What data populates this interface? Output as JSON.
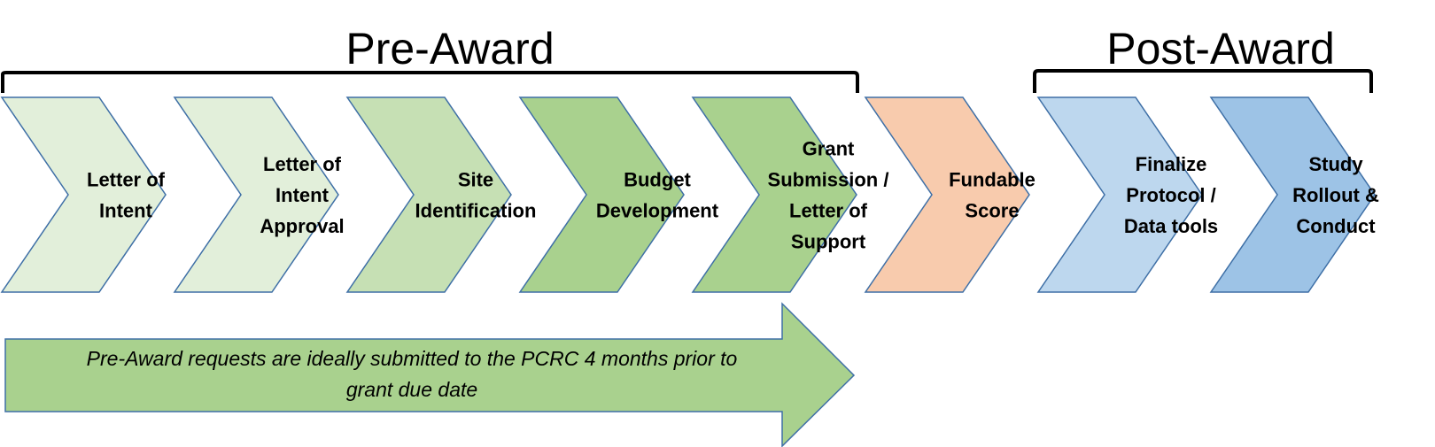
{
  "phases": {
    "pre_award": "Pre-Award",
    "post_award": "Post-Award"
  },
  "steps": [
    {
      "lines": [
        "Letter of",
        "Intent"
      ],
      "color": "#e2efda"
    },
    {
      "lines": [
        "Letter of",
        "Intent",
        "Approval"
      ],
      "color": "#e2efda"
    },
    {
      "lines": [
        "Site",
        "Identification"
      ],
      "color": "#c6e0b4"
    },
    {
      "lines": [
        "Budget",
        "Development"
      ],
      "color": "#a9d18e"
    },
    {
      "lines": [
        "Grant",
        "Submission /",
        "Letter of",
        "Support"
      ],
      "color": "#a9d18e"
    },
    {
      "lines": [
        "Fundable",
        "Score"
      ],
      "color": "#f8cbad"
    },
    {
      "lines": [
        "Finalize",
        "Protocol /",
        "Data tools"
      ],
      "color": "#bdd7ee"
    },
    {
      "lines": [
        "Study",
        "Rollout &",
        "Conduct"
      ],
      "color": "#9dc3e6"
    }
  ],
  "note": {
    "lines": [
      "Pre-Award requests are ideally submitted to the PCRC 4 months prior to",
      "grant due date"
    ],
    "color": "#a9d18e"
  },
  "colors": {
    "outline": "#3e6fa6",
    "bracket": "#000000"
  }
}
